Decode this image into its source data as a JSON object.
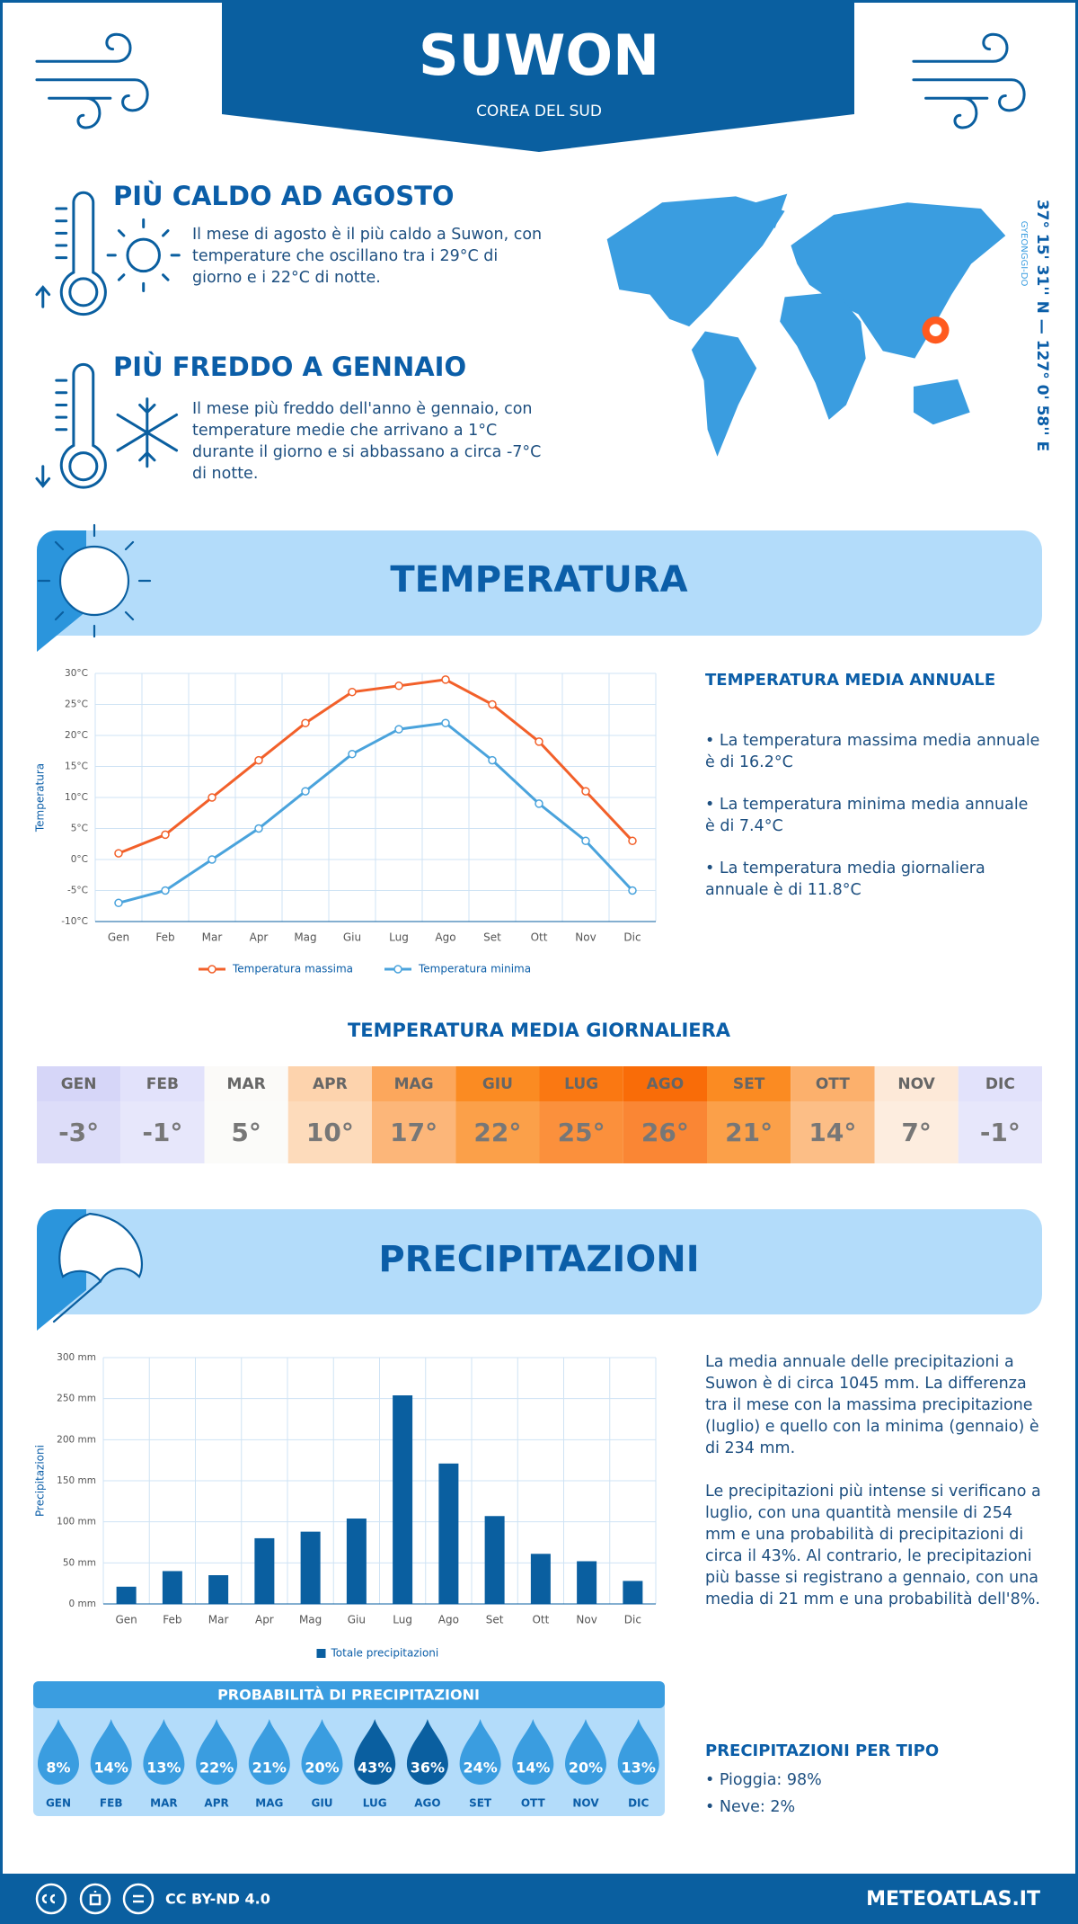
{
  "header": {
    "title": "SUWON",
    "subtitle": "COREA DEL SUD"
  },
  "hottest": {
    "title": "PIÙ CALDO AD AGOSTO",
    "text": "Il mese di agosto è il più caldo a Suwon, con temperature che oscillano tra i 29°C di giorno e i 22°C di notte."
  },
  "coldest": {
    "title": "PIÙ FREDDO A GENNAIO",
    "text": "Il mese più freddo dell'anno è gennaio, con temperature medie che arrivano a 1°C durante il giorno e si abbassano a circa -7°C di notte."
  },
  "location": {
    "coordinates": "37° 15' 31'' N — 127° 0' 58'' E",
    "region": "GYEONGGI-DO"
  },
  "temperature_section": {
    "title": "TEMPERATURA"
  },
  "chart_data": [
    {
      "type": "line",
      "y_label": "Temperatura",
      "categories": [
        "Gen",
        "Feb",
        "Mar",
        "Apr",
        "Mag",
        "Giu",
        "Lug",
        "Ago",
        "Set",
        "Ott",
        "Nov",
        "Dic"
      ],
      "series": [
        {
          "name": "Temperatura massima",
          "color": "#f2602a",
          "values": [
            1,
            4,
            10,
            16,
            22,
            27,
            28,
            29,
            25,
            19,
            11,
            3
          ]
        },
        {
          "name": "Temperatura minima",
          "color": "#4aa3dc",
          "values": [
            -7,
            -5,
            0,
            5,
            11,
            17,
            21,
            22,
            16,
            9,
            3,
            -5
          ]
        }
      ],
      "ylim": [
        -10,
        30
      ],
      "yticks": [
        {
          "value": -10,
          "label": "-10°C"
        },
        {
          "value": -5,
          "label": "-5°C"
        },
        {
          "value": 0,
          "label": "0°C"
        },
        {
          "value": 5,
          "label": "5°C"
        },
        {
          "value": 10,
          "label": "10°C"
        },
        {
          "value": 15,
          "label": "15°C"
        },
        {
          "value": 20,
          "label": "20°C"
        },
        {
          "value": 25,
          "label": "25°C"
        },
        {
          "value": 30,
          "label": "30°C"
        }
      ],
      "grid": true
    },
    {
      "type": "bar",
      "y_label": "Precipitazioni",
      "categories": [
        "Gen",
        "Feb",
        "Mar",
        "Apr",
        "Mag",
        "Giu",
        "Lug",
        "Ago",
        "Set",
        "Ott",
        "Nov",
        "Dic"
      ],
      "series": [
        {
          "name": "Totale precipitazioni",
          "color": "#0a5fa0",
          "values": [
            21,
            40,
            35,
            80,
            88,
            104,
            254,
            171,
            107,
            61,
            52,
            28
          ]
        }
      ],
      "ylim": [
        0,
        300
      ],
      "yticks": [
        {
          "value": 0,
          "label": "0 mm"
        },
        {
          "value": 50,
          "label": "50 mm"
        },
        {
          "value": 100,
          "label": "100 mm"
        },
        {
          "value": 150,
          "label": "150 mm"
        },
        {
          "value": 200,
          "label": "200 mm"
        },
        {
          "value": 250,
          "label": "250 mm"
        },
        {
          "value": 300,
          "label": "300 mm"
        }
      ],
      "grid": true
    }
  ],
  "annual": {
    "title": "TEMPERATURA MEDIA ANNUALE",
    "items": [
      "• La temperatura massima media annuale è di 16.2°C",
      "• La temperatura minima media annuale è di 7.4°C",
      "• La temperatura media giornaliera annuale è di 11.8°C"
    ]
  },
  "daily": {
    "title": "TEMPERATURA MEDIA GIORNALIERA",
    "months": [
      "GEN",
      "FEB",
      "MAR",
      "APR",
      "MAG",
      "GIU",
      "LUG",
      "AGO",
      "SET",
      "OTT",
      "NOV",
      "DIC"
    ],
    "values": [
      "-3°",
      "-1°",
      "5°",
      "10°",
      "17°",
      "22°",
      "25°",
      "26°",
      "21°",
      "14°",
      "7°",
      "-1°"
    ],
    "colors": [
      "#d6d6f8",
      "#e2e2fb",
      "#fbfaf8",
      "#fdd3ad",
      "#fca75c",
      "#fb8b22",
      "#fa7812",
      "#f96c08",
      "#fb8b22",
      "#fcb06c",
      "#fde9d8",
      "#e2e2fb"
    ]
  },
  "precipitation_section": {
    "title": "PRECIPITAZIONI",
    "paragraphs": [
      "La media annuale delle precipitazioni a Suwon è di circa 1045 mm. La differenza tra il mese con la massima precipitazione (luglio) e quello con la minima (gennaio) è di 234 mm.",
      "Le precipitazioni più intense si verificano a luglio, con una quantità mensile di 254 mm e una probabilità di precipitazioni di circa il 43%. Al contrario, le precipitazioni più basse si registrano a gennaio, con una media di 21 mm e una probabilità dell'8%."
    ]
  },
  "probability": {
    "title": "PROBABILITÀ DI PRECIPITAZIONI",
    "months": [
      "GEN",
      "FEB",
      "MAR",
      "APR",
      "MAG",
      "GIU",
      "LUG",
      "AGO",
      "SET",
      "OTT",
      "NOV",
      "DIC"
    ],
    "values": [
      "8%",
      "14%",
      "13%",
      "22%",
      "21%",
      "20%",
      "43%",
      "36%",
      "24%",
      "14%",
      "20%",
      "13%"
    ],
    "colors": [
      "#3a9de0",
      "#3a9de0",
      "#3a9de0",
      "#3a9de0",
      "#3a9de0",
      "#3a9de0",
      "#0a5fa0",
      "#0a5fa0",
      "#3a9de0",
      "#3a9de0",
      "#3a9de0",
      "#3a9de0"
    ]
  },
  "by_type": {
    "title": "PRECIPITAZIONI PER TIPO",
    "items": [
      "• Pioggia: 98%",
      "• Neve: 2%"
    ]
  },
  "footer": {
    "license": "CC BY-ND 4.0",
    "site": "METEOATLAS.IT"
  }
}
